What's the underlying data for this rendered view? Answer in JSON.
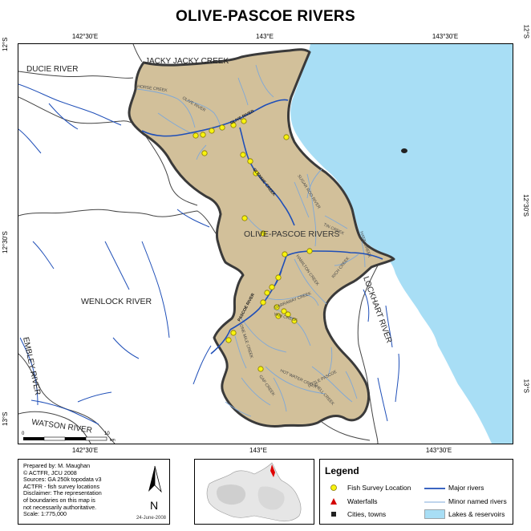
{
  "map": {
    "title": "OLIVE-PASCOE RIVERS",
    "graticule": {
      "top": [
        "142°30'E",
        "143°E",
        "143°30'E"
      ],
      "bottom": [
        "142°30'E",
        "143°E",
        "143°30'E"
      ],
      "left": [
        "12°S",
        "12°30'S",
        "13°S"
      ],
      "right": [
        "12°S",
        "12°30'S",
        "13°S"
      ]
    },
    "labels": {
      "ducie": "DUCIE RIVER",
      "jacky": "JACKY JACKY CREEK",
      "wenlock": "WENLOCK RIVER",
      "olive_pascoe": "OLIVE-PASCOE RIVERS",
      "lockhart": "LOCKHART RIVER",
      "embley": "EMBLEY RIVER",
      "watson": "WATSON RIVER",
      "horse_creek": "HORSE CREEK",
      "olive_river_minor": "OLIVE RIVER",
      "olive_river_major": "OLIVE RIVER",
      "glennie": "GLENNIE CREEK",
      "sugar": "SUGAR ROO RIVER",
      "tin": "TIN CREEK",
      "hamilton": "HAMILTON CREEK",
      "rich": "RICH CREEK",
      "hann": "HANN CREEK",
      "pascoe_major": "PASCOE RIVER",
      "garraway": "GARRAWAY CREEK",
      "yam": "YAM CREEK",
      "one_mile": "ONE MILE CREEK",
      "hotwater": "HOT WATER CREEK",
      "little_pascoe": "LITTLE PASCOE",
      "gap": "GAP CREEK",
      "shell": "SHELL CREEK"
    },
    "scale_bar": {
      "start": "0",
      "end": "10",
      "unit": "km"
    }
  },
  "credits": {
    "lines": [
      "Prepared by: M. Maughan",
      "©     ACTFR,     JCU     2008",
      "Sources: GA 250k topodata v3",
      "ACTFR - fish survey locations",
      "Disclaimer: The representation",
      "of boundaries on this map is",
      "not necessarily authoritative.",
      "Scale:   1:775,000"
    ],
    "north_label": "N",
    "date": "24-June-2008"
  },
  "legend": {
    "title": "Legend",
    "items": [
      {
        "label": "Fish Survey Location",
        "symbol": "yellow-circle-icon"
      },
      {
        "label": "Major rivers",
        "symbol": "thick-blue-line-icon"
      },
      {
        "label": "Waterfalls",
        "symbol": "red-triangle-icon"
      },
      {
        "label": "Minor named rivers",
        "symbol": "thin-blue-line-icon"
      },
      {
        "label": "Cities, towns",
        "symbol": "black-square-icon"
      },
      {
        "label": "Lakes & reservoirs",
        "symbol": "light-blue-rect-icon"
      }
    ]
  },
  "colors": {
    "catchment_fill": "#d2c09a",
    "catchment_border": "#3a3a3a",
    "sea": "#a8def5",
    "major_river": "#1f4fb8",
    "minor_river": "#7fa8d8",
    "survey_point": "#f7f30f",
    "waterfall": "#d40000"
  }
}
